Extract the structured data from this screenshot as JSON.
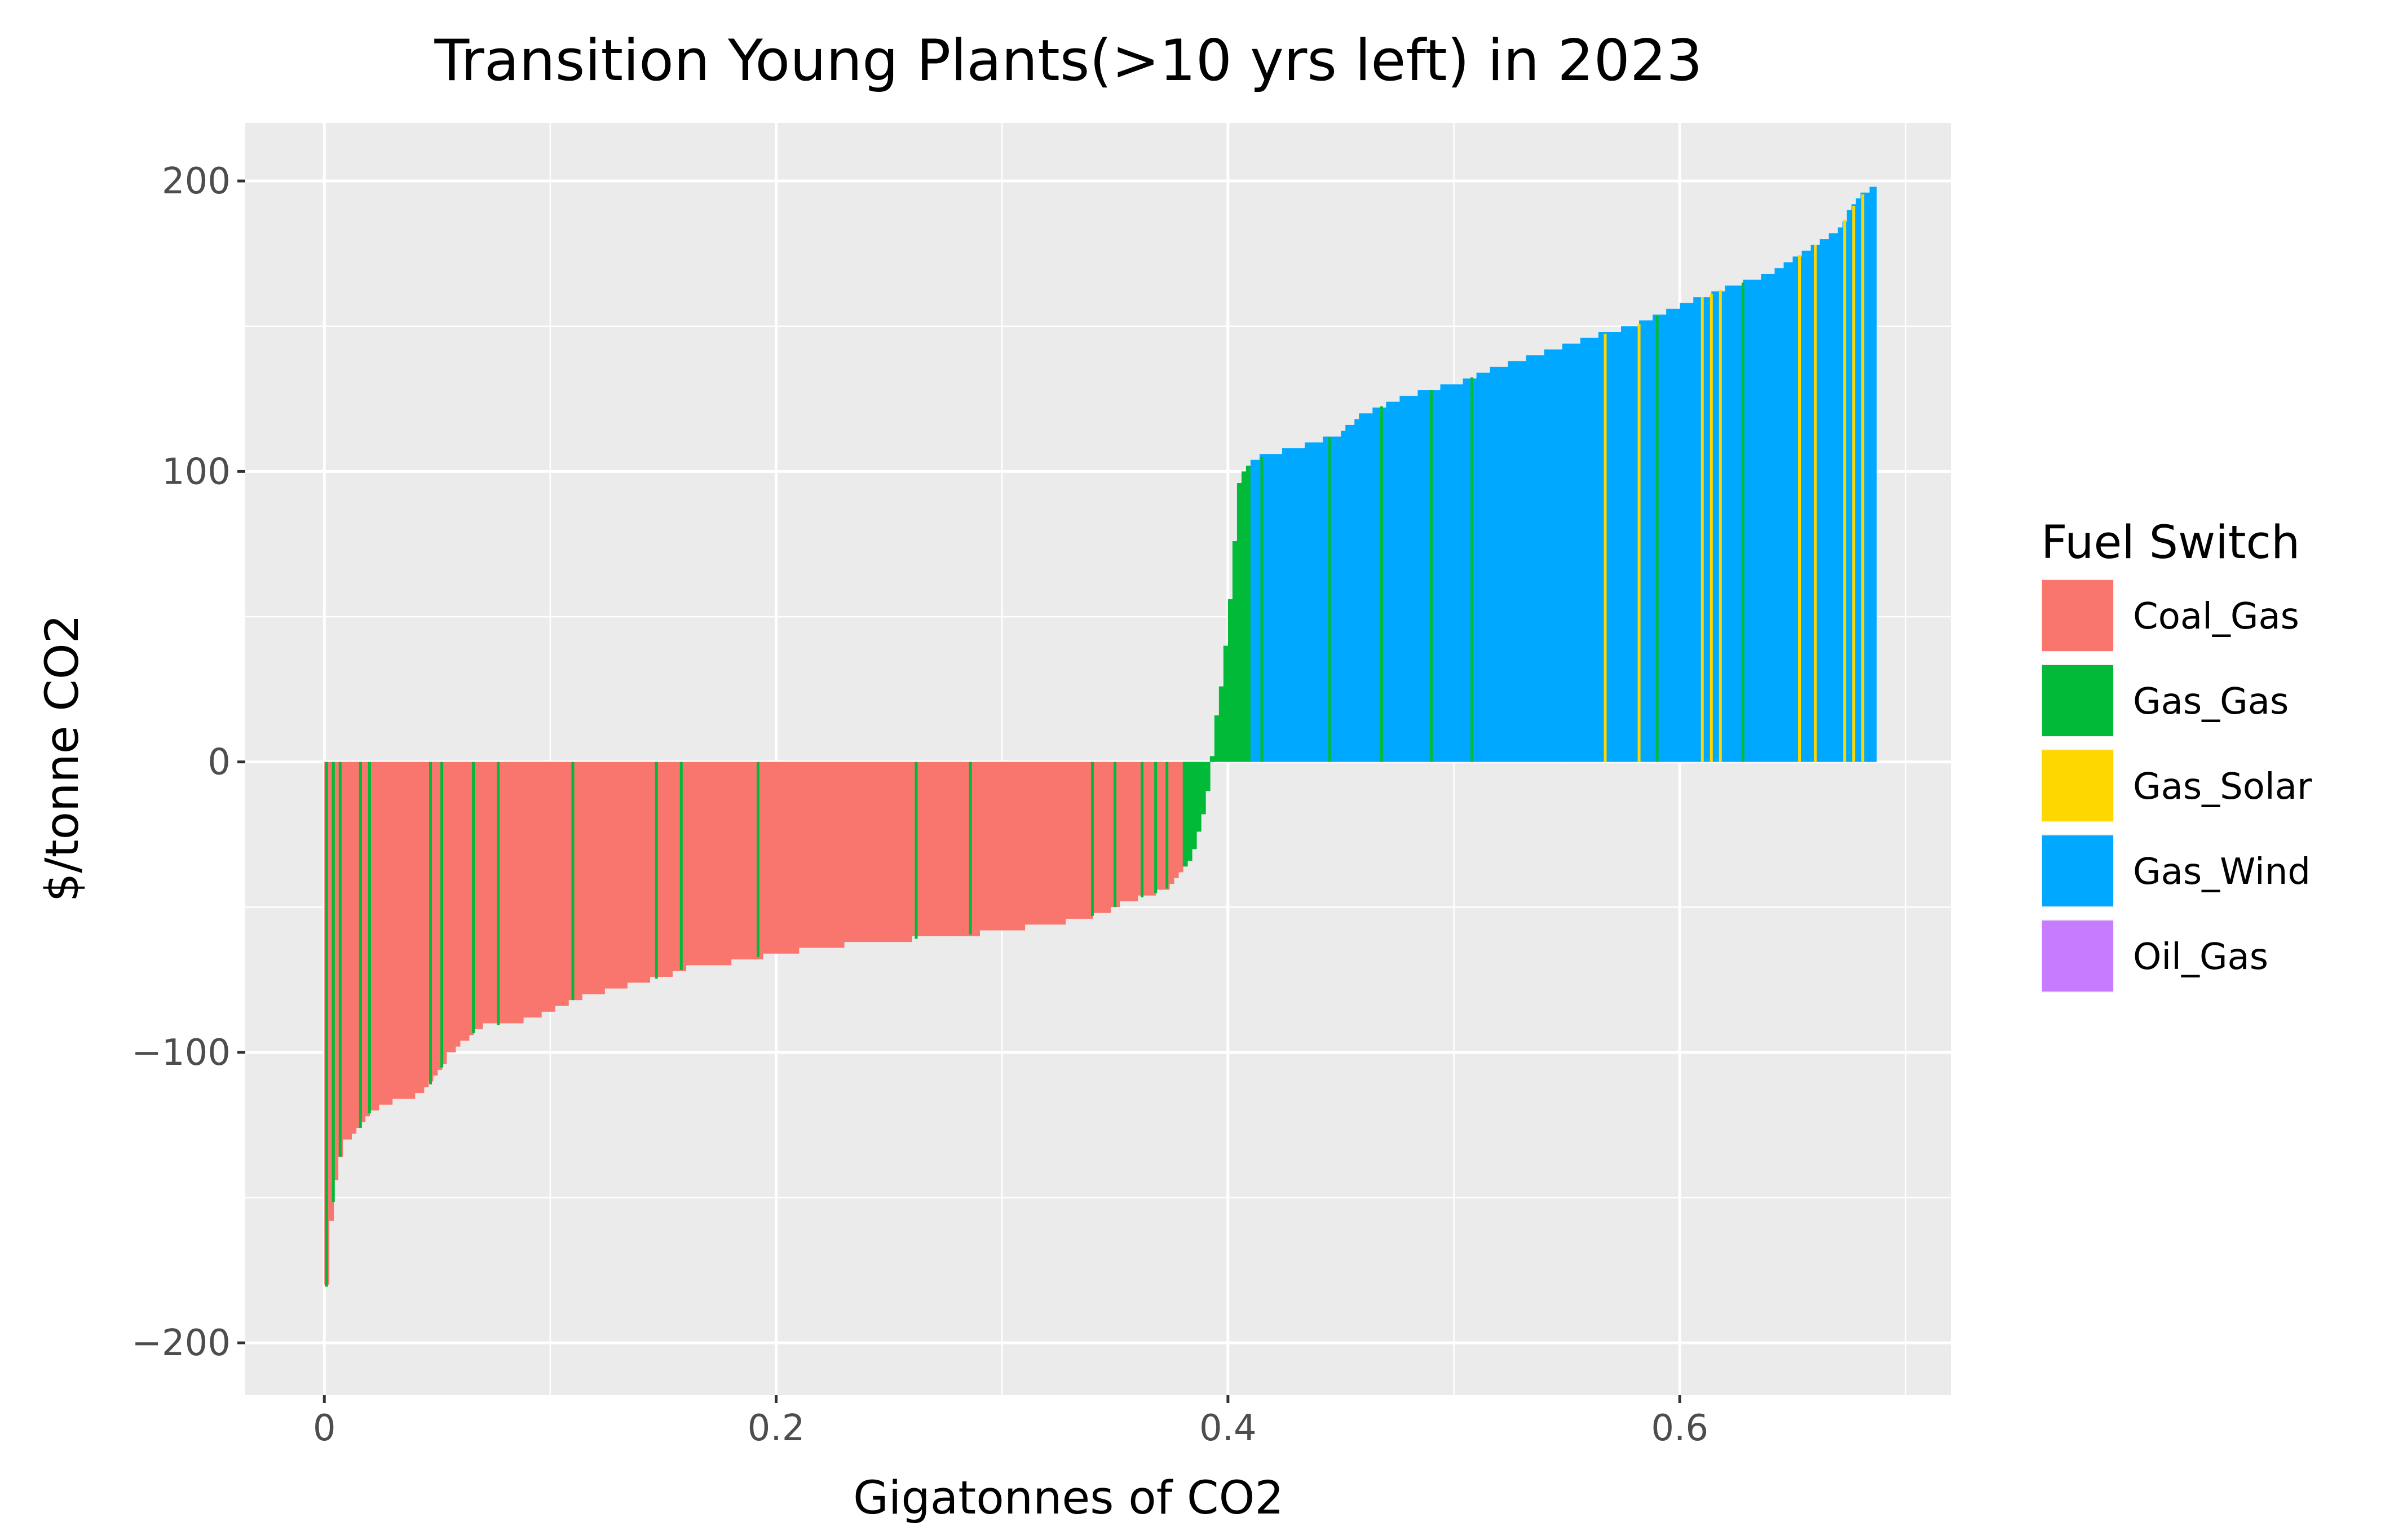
{
  "chart_data": {
    "type": "bar",
    "subtype": "variable-width marginal abatement cost curve",
    "title": "Transition Young Plants(>10 yrs left) in 2023",
    "xlabel": "Gigatonnes of CO2",
    "ylabel": "$/tonne CO2",
    "xlim": [
      -0.035,
      0.72
    ],
    "ylim": [
      -218,
      220
    ],
    "x_ticks": [
      0,
      0.2,
      0.4,
      0.6
    ],
    "x_tick_labels": [
      "0",
      "0.2",
      "0.4",
      "0.6"
    ],
    "y_ticks": [
      -200,
      -100,
      0,
      100,
      200
    ],
    "y_tick_labels": [
      "−200",
      "−100",
      "0",
      "100",
      "200"
    ],
    "background": "#ebebeb",
    "grid": true,
    "legend": {
      "title": "Fuel Switch",
      "position": "right",
      "entries": [
        {
          "name": "Coal_Gas",
          "color": "#f8766d"
        },
        {
          "name": "Gas_Gas",
          "color": "#00ba38"
        },
        {
          "name": "Gas_Solar",
          "color": "#ffd700"
        },
        {
          "name": "Gas_Wind",
          "color": "#00a9ff"
        },
        {
          "name": "Oil_Gas",
          "color": "#c77cff"
        }
      ]
    },
    "curve_points": [
      {
        "x": 0.0,
        "y": -192
      },
      {
        "x": 0.0015,
        "y": -175
      },
      {
        "x": 0.003,
        "y": -158
      },
      {
        "x": 0.005,
        "y": -145
      },
      {
        "x": 0.007,
        "y": -136
      },
      {
        "x": 0.009,
        "y": -131
      },
      {
        "x": 0.012,
        "y": -129
      },
      {
        "x": 0.016,
        "y": -126
      },
      {
        "x": 0.02,
        "y": -121
      },
      {
        "x": 0.025,
        "y": -118
      },
      {
        "x": 0.03,
        "y": -117
      },
      {
        "x": 0.037,
        "y": -116
      },
      {
        "x": 0.045,
        "y": -113
      },
      {
        "x": 0.05,
        "y": -108
      },
      {
        "x": 0.055,
        "y": -101
      },
      {
        "x": 0.06,
        "y": -97
      },
      {
        "x": 0.07,
        "y": -91
      },
      {
        "x": 0.085,
        "y": -90
      },
      {
        "x": 0.1,
        "y": -86
      },
      {
        "x": 0.11,
        "y": -82
      },
      {
        "x": 0.12,
        "y": -80
      },
      {
        "x": 0.135,
        "y": -77
      },
      {
        "x": 0.15,
        "y": -74
      },
      {
        "x": 0.16,
        "y": -71
      },
      {
        "x": 0.18,
        "y": -69
      },
      {
        "x": 0.2,
        "y": -66
      },
      {
        "x": 0.22,
        "y": -64
      },
      {
        "x": 0.24,
        "y": -62
      },
      {
        "x": 0.26,
        "y": -61
      },
      {
        "x": 0.28,
        "y": -60
      },
      {
        "x": 0.3,
        "y": -58
      },
      {
        "x": 0.32,
        "y": -56
      },
      {
        "x": 0.335,
        "y": -54
      },
      {
        "x": 0.345,
        "y": -52
      },
      {
        "x": 0.355,
        "y": -48
      },
      {
        "x": 0.365,
        "y": -46
      },
      {
        "x": 0.375,
        "y": -43
      },
      {
        "x": 0.38,
        "y": -38
      },
      {
        "x": 0.385,
        "y": -30
      },
      {
        "x": 0.389,
        "y": -18
      },
      {
        "x": 0.392,
        "y": -5
      },
      {
        "x": 0.394,
        "y": 10
      },
      {
        "x": 0.397,
        "y": 25
      },
      {
        "x": 0.399,
        "y": 40
      },
      {
        "x": 0.401,
        "y": 55
      },
      {
        "x": 0.403,
        "y": 75
      },
      {
        "x": 0.405,
        "y": 95
      },
      {
        "x": 0.408,
        "y": 102
      },
      {
        "x": 0.415,
        "y": 105
      },
      {
        "x": 0.43,
        "y": 108
      },
      {
        "x": 0.45,
        "y": 113
      },
      {
        "x": 0.46,
        "y": 120
      },
      {
        "x": 0.48,
        "y": 126
      },
      {
        "x": 0.5,
        "y": 130
      },
      {
        "x": 0.52,
        "y": 136
      },
      {
        "x": 0.54,
        "y": 141
      },
      {
        "x": 0.56,
        "y": 146
      },
      {
        "x": 0.58,
        "y": 150
      },
      {
        "x": 0.6,
        "y": 157
      },
      {
        "x": 0.62,
        "y": 163
      },
      {
        "x": 0.64,
        "y": 168
      },
      {
        "x": 0.65,
        "y": 173
      },
      {
        "x": 0.66,
        "y": 178
      },
      {
        "x": 0.67,
        "y": 183
      },
      {
        "x": 0.68,
        "y": 195
      },
      {
        "x": 0.687,
        "y": 198
      }
    ],
    "segments": [
      {
        "x_start": 0.0,
        "x_end": 0.39,
        "fuel_switch": "Coal_Gas"
      },
      {
        "x_start": 0.38,
        "x_end": 0.41,
        "fuel_switch": "Gas_Gas"
      },
      {
        "x_start": 0.41,
        "x_end": 0.687,
        "fuel_switch": "Gas_Wind"
      }
    ],
    "stripes": [
      {
        "x": 0.001,
        "fuel_switch": "Gas_Gas"
      },
      {
        "x": 0.004,
        "fuel_switch": "Gas_Gas"
      },
      {
        "x": 0.007,
        "fuel_switch": "Gas_Gas"
      },
      {
        "x": 0.016,
        "fuel_switch": "Gas_Gas"
      },
      {
        "x": 0.02,
        "fuel_switch": "Gas_Gas"
      },
      {
        "x": 0.047,
        "fuel_switch": "Gas_Gas"
      },
      {
        "x": 0.052,
        "fuel_switch": "Gas_Gas"
      },
      {
        "x": 0.066,
        "fuel_switch": "Gas_Gas"
      },
      {
        "x": 0.077,
        "fuel_switch": "Gas_Gas"
      },
      {
        "x": 0.11,
        "fuel_switch": "Gas_Gas"
      },
      {
        "x": 0.147,
        "fuel_switch": "Gas_Gas"
      },
      {
        "x": 0.158,
        "fuel_switch": "Gas_Gas"
      },
      {
        "x": 0.192,
        "fuel_switch": "Gas_Gas"
      },
      {
        "x": 0.262,
        "fuel_switch": "Gas_Gas"
      },
      {
        "x": 0.286,
        "fuel_switch": "Gas_Gas"
      },
      {
        "x": 0.34,
        "fuel_switch": "Gas_Gas"
      },
      {
        "x": 0.35,
        "fuel_switch": "Gas_Gas"
      },
      {
        "x": 0.362,
        "fuel_switch": "Gas_Gas"
      },
      {
        "x": 0.368,
        "fuel_switch": "Gas_Gas"
      },
      {
        "x": 0.373,
        "fuel_switch": "Gas_Gas"
      },
      {
        "x": 0.415,
        "fuel_switch": "Gas_Gas"
      },
      {
        "x": 0.445,
        "fuel_switch": "Gas_Gas"
      },
      {
        "x": 0.468,
        "fuel_switch": "Gas_Gas"
      },
      {
        "x": 0.49,
        "fuel_switch": "Gas_Gas"
      },
      {
        "x": 0.508,
        "fuel_switch": "Gas_Gas"
      },
      {
        "x": 0.567,
        "fuel_switch": "Gas_Solar"
      },
      {
        "x": 0.582,
        "fuel_switch": "Gas_Solar"
      },
      {
        "x": 0.59,
        "fuel_switch": "Gas_Gas"
      },
      {
        "x": 0.61,
        "fuel_switch": "Gas_Solar"
      },
      {
        "x": 0.614,
        "fuel_switch": "Gas_Solar"
      },
      {
        "x": 0.618,
        "fuel_switch": "Gas_Solar"
      },
      {
        "x": 0.628,
        "fuel_switch": "Gas_Gas"
      },
      {
        "x": 0.653,
        "fuel_switch": "Gas_Solar"
      },
      {
        "x": 0.66,
        "fuel_switch": "Gas_Solar"
      },
      {
        "x": 0.673,
        "fuel_switch": "Gas_Solar"
      },
      {
        "x": 0.677,
        "fuel_switch": "Gas_Solar"
      },
      {
        "x": 0.681,
        "fuel_switch": "Gas_Solar"
      }
    ]
  }
}
